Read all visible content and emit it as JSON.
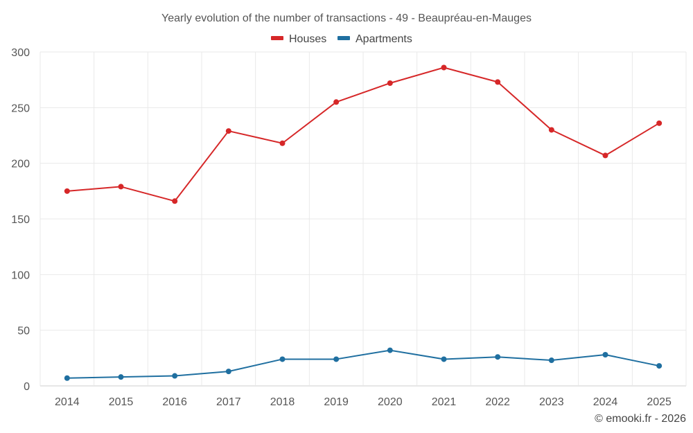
{
  "chart_data": {
    "type": "line",
    "title": "Yearly evolution of the number of transactions - 49 - Beaupréau-en-Mauges",
    "categories": [
      "2014",
      "2015",
      "2016",
      "2017",
      "2018",
      "2019",
      "2020",
      "2021",
      "2022",
      "2023",
      "2024",
      "2025"
    ],
    "series": [
      {
        "name": "Houses",
        "color": "#d62728",
        "values": [
          175,
          179,
          166,
          229,
          218,
          255,
          272,
          286,
          273,
          230,
          207,
          236
        ]
      },
      {
        "name": "Apartments",
        "color": "#1f6fa0",
        "values": [
          7,
          8,
          9,
          13,
          24,
          24,
          32,
          24,
          26,
          23,
          28,
          18
        ]
      }
    ],
    "ylim": [
      0,
      300
    ],
    "yticks": [
      0,
      50,
      100,
      150,
      200,
      250,
      300
    ],
    "xlabel": "",
    "ylabel": "",
    "grid": true,
    "legend": "top-center"
  },
  "credit": "© emooki.fr - 2026"
}
